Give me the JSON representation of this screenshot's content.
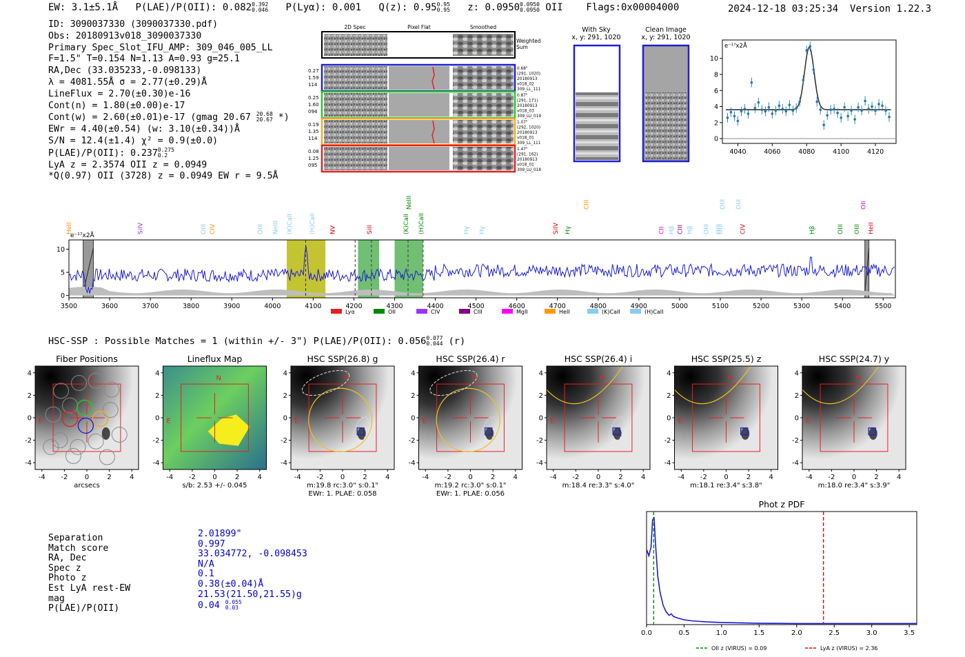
{
  "header": {
    "ew": "EW: 3.1±5.1Å",
    "plae_label": "P(LAE)/P(OII):",
    "plae_val": "0.082",
    "plae_hi": "0.392",
    "plae_lo": "0.046",
    "plya": "P(Lyα): 0.001",
    "qz_label": "Q(z): 0.95",
    "qz_hi": "0.95",
    "qz_lo": "0.95",
    "z_label": "z: 0.0950",
    "z_hi": "0.0950",
    "z_lo": "0.0950",
    "z_line": "OII",
    "flags": "Flags:0x00004000",
    "datetime": "2024-12-18 03:25:34",
    "version": "Version 1.22.3"
  },
  "info_lines": [
    "ID: 3090037330 (3090037330.pdf)",
    "Obs: 20180913v018_3090037330",
    "Primary Spec_Slot_IFU_AMP: 309_046_005_LL",
    "F=1.5\"  T=0.154  N=1.13  A=0.93  g=25.1",
    "RA,Dec (33.035233,-0.098133)",
    "λ = 4081.55Å  σ = 2.77(±0.29)Å",
    "LineFlux = 2.70(±0.30)e-16",
    "Cont(n) = 1.80(±0.00)e-17"
  ],
  "info_contw": {
    "text": "Cont(w) = 2.60(±0.01)e-17 (gmag 20.67",
    "hi": "20.68",
    "lo": "20.67",
    "tail": "*)"
  },
  "info_lines2": [
    "EWr = 4.40(±0.54) (w: 3.10(±0.34))Å",
    "S/N = 12.4(±1.4)  χ² = 0.9(±0.0)"
  ],
  "info_plae": {
    "text": "P(LAE)/P(OII): 0.237",
    "hi": "0.275",
    "lo": "0.2"
  },
  "info_lines3": [
    "LyA z = 2.3574  OII z = 0.0949",
    "*Q(0.97) OII (3728) z = 0.0949  EW r = 9.5Å"
  ],
  "cutouts": {
    "col_2d": "2D Spec",
    "col_flat": "Pixel Flat",
    "col_smooth": "Smoothed",
    "weighted_sum": [
      "Weighted",
      "Sum"
    ],
    "rows": [
      {
        "left": [
          "0.27",
          "1.59",
          "114"
        ],
        "right": [
          "0.68\"",
          "(291, 1020)",
          "20180913",
          "v018_02",
          "309_LL_111"
        ],
        "color": "#1f1fd0"
      },
      {
        "left": [
          "0.25",
          "1.60",
          "094"
        ],
        "right": [
          "0.87\"",
          "(291, 171)",
          "20180913",
          "v018_03",
          "309_LU_019"
        ],
        "color": "#22cc22"
      },
      {
        "left": [
          "0.19",
          "1.35",
          "114"
        ],
        "right": [
          "1.07\"",
          "(292, 1020)",
          "20180913",
          "v018_01",
          "309_LL_111"
        ],
        "color": "#f5a623"
      },
      {
        "left": [
          "0.08",
          "1.25",
          "095"
        ],
        "right": [
          "1.47\"",
          "(291, 162)",
          "20180913",
          "v018_01",
          "309_LU_018"
        ],
        "color": "#e52020"
      }
    ],
    "with_sky": [
      "With Sky",
      "x, y: 291, 1020"
    ],
    "clean": [
      "Clean Image",
      "x, y: 291, 1020"
    ]
  },
  "line_fit": {
    "ylabel": "e⁻¹⁷x2Å",
    "xticks": [
      4040,
      4060,
      4080,
      4100,
      4120
    ],
    "yticks": [
      0,
      2,
      4,
      6,
      8,
      10
    ],
    "xlim": [
      4031,
      4132
    ],
    "ylim": [
      -0.6,
      12.3
    ],
    "data": [
      [
        4034,
        2.6
      ],
      [
        4036,
        3.3
      ],
      [
        4038,
        2.8
      ],
      [
        4040,
        2.2
      ],
      [
        4042,
        3.4
      ],
      [
        4044,
        3.7
      ],
      [
        4046,
        3.1
      ],
      [
        4048,
        7.0
      ],
      [
        4050,
        3.8
      ],
      [
        4052,
        4.5
      ],
      [
        4054,
        3.6
      ],
      [
        4056,
        3.4
      ],
      [
        4058,
        3.9
      ],
      [
        4060,
        3.1
      ],
      [
        4062,
        3.5
      ],
      [
        4064,
        4.1
      ],
      [
        4066,
        3.7
      ],
      [
        4068,
        3.4
      ],
      [
        4070,
        4.2
      ],
      [
        4072,
        3.5
      ],
      [
        4074,
        3.8
      ],
      [
        4076,
        4.6
      ],
      [
        4078,
        7.3
      ],
      [
        4080,
        11.0
      ],
      [
        4082,
        11.5
      ],
      [
        4084,
        8.6
      ],
      [
        4086,
        4.6
      ],
      [
        4088,
        3.6
      ],
      [
        4090,
        1.7
      ],
      [
        4092,
        2.9
      ],
      [
        4094,
        3.6
      ],
      [
        4096,
        3.7
      ],
      [
        4098,
        3.2
      ],
      [
        4100,
        2.6
      ],
      [
        4102,
        3.9
      ],
      [
        4104,
        2.8
      ],
      [
        4106,
        3.5
      ],
      [
        4108,
        2.4
      ],
      [
        4110,
        3.9
      ],
      [
        4112,
        3.5
      ],
      [
        4114,
        4.7
      ],
      [
        4116,
        3.7
      ],
      [
        4118,
        4.0
      ],
      [
        4120,
        3.5
      ],
      [
        4122,
        4.3
      ],
      [
        4124,
        4.1
      ],
      [
        4126,
        3.5
      ],
      [
        4128,
        2.7
      ]
    ],
    "fit": {
      "center": 4081.55,
      "sigma": 2.77,
      "amp": 7.8,
      "cont": 3.6
    }
  },
  "spectrum": {
    "ylabel": "e⁻¹⁷x2Å",
    "xticks": [
      3500,
      3600,
      3700,
      3800,
      3900,
      4000,
      4100,
      4200,
      4300,
      4400,
      4500,
      4600,
      4700,
      4800,
      4900,
      5000,
      5100,
      5200,
      5300,
      5400,
      5500
    ],
    "yticks": [
      0,
      5,
      10
    ],
    "xlim": [
      3500,
      5530
    ],
    "ylim": [
      -0.5,
      12
    ],
    "labels": [
      {
        "w": 3505,
        "t": "HeII",
        "c": "#ff8800"
      },
      {
        "w": 3680,
        "t": "SiIV",
        "c": "#9933cc"
      },
      {
        "w": 3835,
        "t": "OIII",
        "c": "#88ccee"
      },
      {
        "w": 3857,
        "t": "CIV",
        "c": "#ff8800"
      },
      {
        "w": 3975,
        "t": "OIII",
        "c": "#88ccee"
      },
      {
        "w": 4012,
        "t": "NeIII",
        "c": "#88ccee"
      },
      {
        "w": 4047,
        "t": "(K)CaII",
        "c": "#88ccee"
      },
      {
        "w": 4103,
        "t": "(H)CaII",
        "c": "#88ccee"
      },
      {
        "w": 4153,
        "t": "NV",
        "c": "#dd0000"
      },
      {
        "w": 4243,
        "t": "SiII",
        "c": "#dd0000"
      },
      {
        "w": 4333,
        "t": "(K)CaII",
        "c": "#008800"
      },
      {
        "w": 4370,
        "t": "(H)CaII",
        "c": "#008800"
      },
      {
        "w": 4481,
        "t": "Hγ",
        "c": "#88ccee"
      },
      {
        "w": 4519,
        "t": "Hγ",
        "c": "#88ccee"
      },
      {
        "w": 4700,
        "t": "SiIV",
        "c": "#dd0000"
      },
      {
        "w": 4730,
        "t": "Hγ",
        "c": "#008800"
      },
      {
        "w": 4960,
        "t": "CII",
        "c": "#cc00cc"
      },
      {
        "w": 4985,
        "t": "Hβ",
        "c": "#88ccee"
      },
      {
        "w": 5006,
        "t": "CIII",
        "c": "#800080"
      },
      {
        "w": 5030,
        "t": "Hβ",
        "c": "#88ccee"
      },
      {
        "w": 5070,
        "t": "OIII",
        "c": "#88ccee"
      },
      {
        "w": 5100,
        "t": "OIII",
        "c": "#88ccee"
      },
      {
        "w": 5105,
        "t": "OIII",
        "c": "#88ccee"
      },
      {
        "w": 5160,
        "t": "CIV",
        "c": "#dd0000"
      },
      {
        "w": 5330,
        "t": "Hβ",
        "c": "#008800"
      },
      {
        "w": 5400,
        "t": "OIII",
        "c": "#008800"
      },
      {
        "w": 5440,
        "t": "OIII",
        "c": "#008800"
      },
      {
        "w": 5475,
        "t": "HeII",
        "c": "#dd0000"
      }
    ],
    "top_labels": [
      {
        "w": 4340,
        "t": "NeIII",
        "c": "#008800"
      },
      {
        "w": 4776,
        "t": "CIII",
        "c": "#ff8800"
      },
      {
        "w": 5110,
        "t": "OIII",
        "c": "#88ccee"
      },
      {
        "w": 5150,
        "t": "OIII",
        "c": "#88ccee"
      },
      {
        "w": 5456,
        "t": "OII",
        "c": "#cc00cc"
      }
    ],
    "bands": [
      {
        "x0": 4035,
        "x1": 4130,
        "c": "#b5b500"
      },
      {
        "x0": 4210,
        "x1": 4262,
        "c": "#4caf50"
      },
      {
        "x0": 4300,
        "x1": 4370,
        "c": "#4caf50"
      }
    ],
    "gray_bands": [
      {
        "x0": 3535,
        "x1": 3560
      },
      {
        "x0": 5455,
        "x1": 5465
      }
    ],
    "legend": [
      {
        "t": "Lyα",
        "c": "#e52020"
      },
      {
        "t": "OII",
        "c": "#008800"
      },
      {
        "t": "CIV",
        "c": "#9933ff"
      },
      {
        "t": "CIII",
        "c": "#800080"
      },
      {
        "t": "MgII",
        "c": "#ff00ff"
      },
      {
        "t": "HeII",
        "c": "#ff9900"
      },
      {
        "t": "(K)CaII",
        "c": "#88ccee"
      },
      {
        "t": "(H)CaII",
        "c": "#88ccee"
      }
    ]
  },
  "hsc_head": {
    "text": "HSC-SSP : Possible Matches = 1 (within +/- 3\")  P(LAE)/P(OII): 0.056",
    "hi": "0.077",
    "lo": "0.044",
    "tail": "(r)"
  },
  "panels": [
    {
      "title": "Fiber Positions",
      "caption": [
        "arcsecs"
      ]
    },
    {
      "title": "Lineflux Map",
      "caption": [
        "s/b: 2.53 +/- 0.045"
      ]
    },
    {
      "title": "HSC SSP(26.8) g",
      "caption": [
        "m:19.8 rc:3.0\"  s:0.1\"",
        "EWr: 1. PLAE: 0.058"
      ]
    },
    {
      "title": "HSC SSP(26.4) r",
      "caption": [
        "m:19.2 rc:3.0\"  s:0.1\"",
        "EWr: 1. PLAE: 0.056"
      ]
    },
    {
      "title": "HSC SSP(26.4) i",
      "caption": [
        "m:18.4  re:3.3\"  s:4.0\""
      ]
    },
    {
      "title": "HSC SSP(25.5) z",
      "caption": [
        "m:18.1  re:3.4\"  s:3.8\""
      ]
    },
    {
      "title": "HSC SSP(24.7) y",
      "caption": [
        "m:18.0  re:3.4\"  s:3.9\""
      ]
    }
  ],
  "panel_axis": {
    "ticks": [
      -4,
      -2,
      0,
      2,
      4
    ],
    "n_label": "N",
    "e_label": "E"
  },
  "sep_labels": [
    "Separation",
    "Match score",
    "RA, Dec",
    "Spec z",
    "Photo z",
    "Est LyA rest-EW",
    "mag",
    "P(LAE)/P(OII)"
  ],
  "sep_values": [
    "2.01899\"",
    "0.997",
    "33.034772, -0.098453",
    "N/A",
    "0.1",
    "0.38(±0.04)Å",
    "21.53(21.50,21.55)g"
  ],
  "sep_plae": {
    "val": "0.04",
    "hi": "0.055",
    "lo": "0.03"
  },
  "photz": {
    "title": "Phot z PDF",
    "xticks": [
      0.0,
      0.5,
      1.0,
      1.5,
      2.0,
      2.5,
      3.0,
      3.5
    ],
    "xlim": [
      0,
      3.6
    ],
    "legend": [
      {
        "t": "OII z (VIRUS) = 0.09",
        "c": "#008800",
        "z": 0.095
      },
      {
        "t": "LyA z (VIRUS) = 2.36",
        "c": "#dd0000",
        "z": 2.357
      }
    ],
    "pdf": [
      [
        0.0,
        0.7
      ],
      [
        0.03,
        0.64
      ],
      [
        0.06,
        0.72
      ],
      [
        0.08,
        0.97
      ],
      [
        0.1,
        1.0
      ],
      [
        0.12,
        0.74
      ],
      [
        0.15,
        0.45
      ],
      [
        0.18,
        0.3
      ],
      [
        0.22,
        0.18
      ],
      [
        0.26,
        0.12
      ],
      [
        0.3,
        0.085
      ],
      [
        0.33,
        0.1
      ],
      [
        0.36,
        0.075
      ],
      [
        0.42,
        0.06
      ],
      [
        0.5,
        0.045
      ],
      [
        0.6,
        0.035
      ],
      [
        0.8,
        0.025
      ],
      [
        1.0,
        0.02
      ],
      [
        1.5,
        0.012
      ],
      [
        2.0,
        0.01
      ],
      [
        2.5,
        0.01
      ],
      [
        3.0,
        0.01
      ],
      [
        3.6,
        0.01
      ]
    ]
  }
}
